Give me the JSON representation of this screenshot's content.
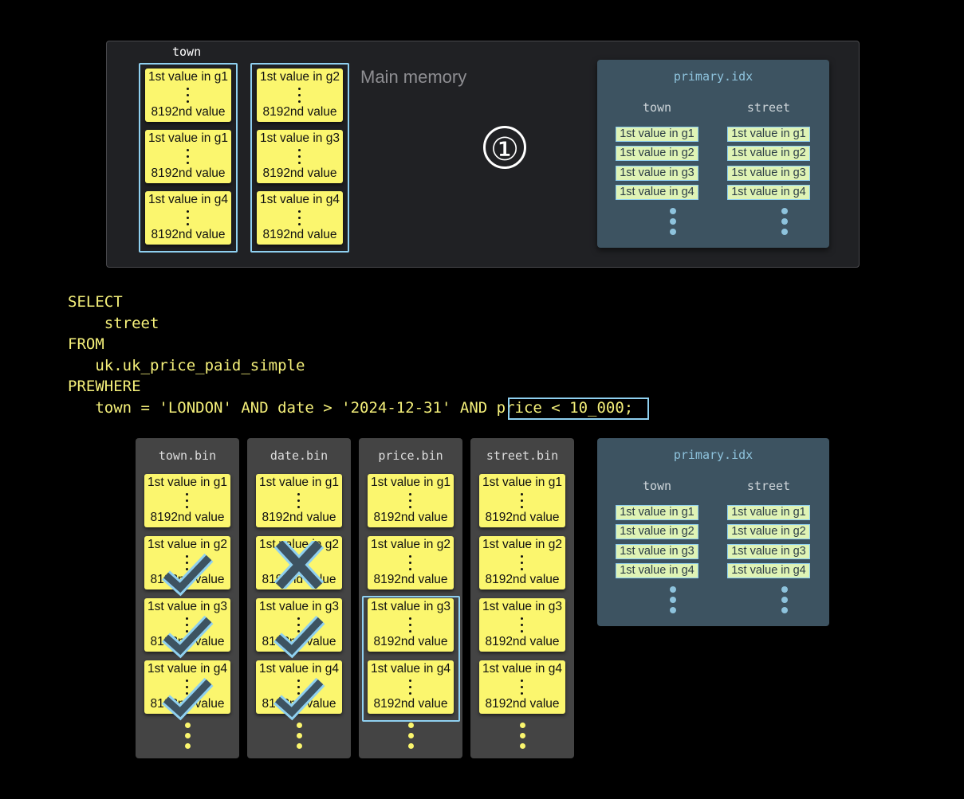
{
  "main_memory": {
    "label": "Main memory",
    "column_label": "town",
    "step_marker": "①",
    "columns": [
      {
        "cards": [
          {
            "first": "1st value in g1",
            "last": "8192nd value"
          },
          {
            "first": "1st value in g1",
            "last": "8192nd value"
          },
          {
            "first": "1st value in g4",
            "last": "8192nd value"
          }
        ]
      },
      {
        "cards": [
          {
            "first": "1st value in g2",
            "last": "8192nd value"
          },
          {
            "first": "1st value in g3",
            "last": "8192nd value"
          },
          {
            "first": "1st value in g4",
            "last": "8192nd value"
          }
        ]
      }
    ]
  },
  "primary_index": {
    "title": "primary.idx",
    "columns": [
      {
        "header": "town",
        "entries": [
          "1st value in g1",
          "1st value in g2",
          "1st value in g3",
          "1st value in g4"
        ]
      },
      {
        "header": "street",
        "entries": [
          "1st value in g1",
          "1st value in g2",
          "1st value in g3",
          "1st value in g4"
        ]
      }
    ]
  },
  "query": {
    "lines": [
      "SELECT",
      "    street",
      "FROM",
      "   uk.uk_price_paid_simple",
      "PREWHERE",
      "   town = 'LONDON' AND date > '2024-12-31' AND price < 10_000;"
    ],
    "highlighted": "price < 10_000"
  },
  "bins": [
    {
      "title": "town.bin",
      "marks": [
        "none",
        "check",
        "check",
        "check"
      ]
    },
    {
      "title": "date.bin",
      "marks": [
        "none",
        "cross",
        "check",
        "check"
      ]
    },
    {
      "title": "price.bin",
      "marks": [
        "none",
        "none",
        "none",
        "none"
      ],
      "selected_granules": [
        "g3",
        "g4"
      ]
    },
    {
      "title": "street.bin",
      "marks": [
        "none",
        "none",
        "none",
        "none"
      ]
    }
  ],
  "granule_cards": [
    {
      "first": "1st value in g1",
      "last": "8192nd value"
    },
    {
      "first": "1st value in g2",
      "last": "8192nd value"
    },
    {
      "first": "1st value in g3",
      "last": "8192nd value"
    },
    {
      "first": "1st value in g4",
      "last": "8192nd value"
    }
  ],
  "colors": {
    "card": "#fbf66e",
    "highlight": "#8fd0f0",
    "index_panel": "#3d5361",
    "mark_fill": "#3d5361",
    "sql_text": "#f5f07a"
  }
}
